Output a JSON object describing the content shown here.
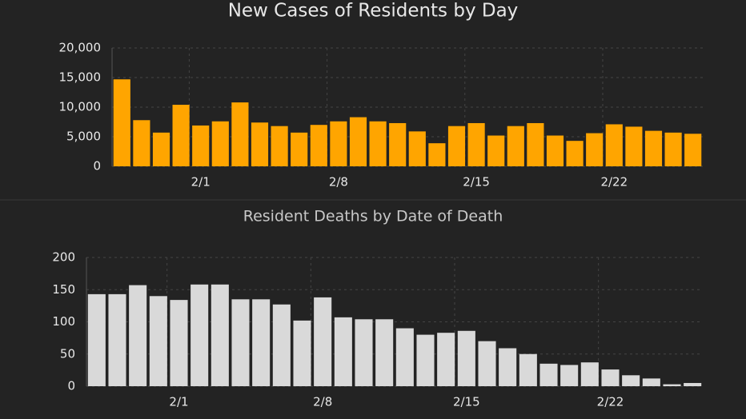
{
  "chart_data": [
    {
      "type": "bar",
      "title": "New Cases of Residents by Day",
      "categories": [
        null,
        null,
        null,
        null,
        "2/1",
        null,
        null,
        null,
        null,
        null,
        null,
        "2/8",
        null,
        null,
        null,
        null,
        null,
        null,
        "2/15",
        null,
        null,
        null,
        null,
        null,
        null,
        "2/22",
        null,
        null,
        null,
        null
      ],
      "values": [
        14700,
        7800,
        5700,
        10400,
        6900,
        7600,
        10800,
        7400,
        6800,
        5700,
        7000,
        7600,
        8300,
        7600,
        7300,
        5900,
        3900,
        6800,
        7300,
        5200,
        6800,
        7300,
        5200,
        4300,
        5600,
        7100,
        6700,
        6000,
        5700,
        5500
      ],
      "color": "#ffa500",
      "ylim": [
        0,
        20000
      ],
      "yticks": [
        0,
        {
          "value": 5000,
          "label": "5,000"
        },
        {
          "value": 10000,
          "label": "10,000"
        },
        {
          "value": 15000,
          "label": "15,000"
        },
        {
          "value": 20000,
          "label": "20,000"
        }
      ],
      "grid": true
    },
    {
      "type": "bar",
      "title": "Resident Deaths by Date of Death",
      "categories": [
        null,
        null,
        null,
        null,
        "2/1",
        null,
        null,
        null,
        null,
        null,
        null,
        "2/8",
        null,
        null,
        null,
        null,
        null,
        null,
        "2/15",
        null,
        null,
        null,
        null,
        null,
        null,
        "2/22",
        null,
        null,
        null,
        null
      ],
      "values": [
        143,
        143,
        157,
        140,
        134,
        158,
        158,
        135,
        135,
        127,
        102,
        138,
        107,
        104,
        104,
        90,
        80,
        83,
        86,
        70,
        59,
        50,
        35,
        33,
        37,
        26,
        17,
        12,
        3,
        5
      ],
      "color": "#d9d9d9",
      "ylim": [
        0,
        200
      ],
      "yticks": [
        0,
        50,
        100,
        150,
        200
      ],
      "grid": true
    }
  ]
}
